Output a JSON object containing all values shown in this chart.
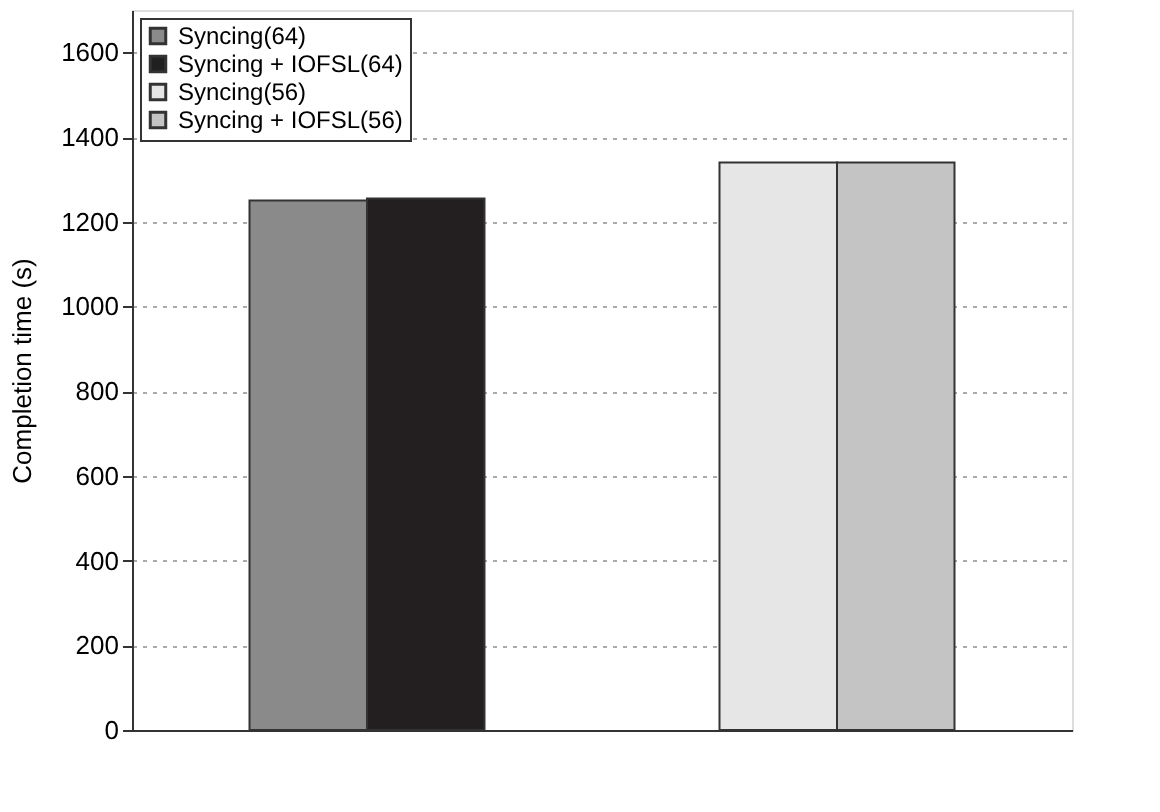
{
  "chart_data": {
    "type": "bar",
    "ylabel": "Completion time (s)",
    "categories": [
      null,
      null
    ],
    "series": [
      {
        "name": "Syncing(64)",
        "color": "#8a8a8a",
        "values": [
          1250,
          null
        ]
      },
      {
        "name": "Syncing + IOFSL(64)",
        "color": "#231f20",
        "values": [
          1255,
          null
        ]
      },
      {
        "name": "Syncing(56)",
        "color": "#e6e6e6",
        "values": [
          null,
          1340
        ]
      },
      {
        "name": "Syncing + IOFSL(56)",
        "color": "#c4c4c4",
        "values": [
          null,
          1340
        ]
      }
    ],
    "ylim": [
      0,
      1700
    ],
    "yticks": [
      0,
      200,
      400,
      600,
      800,
      1000,
      1200,
      1400,
      1600
    ],
    "grid": "y",
    "legend": "top left",
    "tick_labels": "y"
  }
}
